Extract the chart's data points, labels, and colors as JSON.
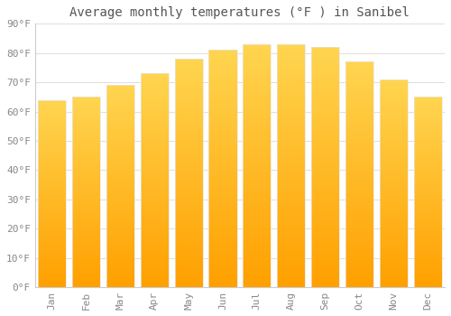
{
  "title": "Average monthly temperatures (°F ) in Sanibel",
  "months": [
    "Jan",
    "Feb",
    "Mar",
    "Apr",
    "May",
    "Jun",
    "Jul",
    "Aug",
    "Sep",
    "Oct",
    "Nov",
    "Dec"
  ],
  "values": [
    64,
    65,
    69,
    73,
    78,
    81,
    83,
    83,
    82,
    77,
    71,
    65
  ],
  "bar_color_top": "#FFD54F",
  "bar_color_bottom": "#FFA000",
  "bar_edge_color": "#E6E6E6",
  "ylim": [
    0,
    90
  ],
  "yticks": [
    0,
    10,
    20,
    30,
    40,
    50,
    60,
    70,
    80,
    90
  ],
  "ytick_labels": [
    "0°F",
    "10°F",
    "20°F",
    "30°F",
    "40°F",
    "50°F",
    "60°F",
    "70°F",
    "80°F",
    "90°F"
  ],
  "bg_color": "#ffffff",
  "title_fontsize": 10,
  "tick_fontsize": 8,
  "grid_color": "#e0e0e0",
  "bar_width": 0.82
}
